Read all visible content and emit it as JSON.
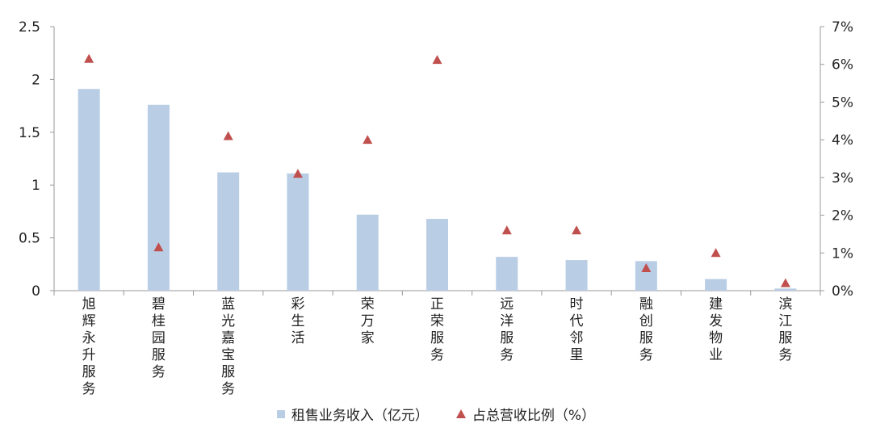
{
  "chart_data": {
    "type": "bar",
    "categories": [
      "旭辉永升服务",
      "碧桂园服务",
      "蓝光嘉宝服务",
      "彩生活",
      "荣万家",
      "正荣服务",
      "远洋服务",
      "时代邻里",
      "融创服务",
      "建发物业",
      "滨江服务"
    ],
    "series": [
      {
        "name": "租售业务收入（亿元）",
        "type": "bar",
        "axis": "left",
        "color": "#b9cde5",
        "values": [
          1.91,
          1.76,
          1.12,
          1.11,
          0.72,
          0.68,
          0.32,
          0.29,
          0.28,
          0.11,
          0.02
        ]
      },
      {
        "name": "占总营收比例（%）",
        "type": "scatter",
        "marker": "triangle",
        "axis": "right",
        "color": "#c0504d",
        "values": [
          6.15,
          1.15,
          4.1,
          3.1,
          4.0,
          6.12,
          1.6,
          1.6,
          0.6,
          1.0,
          0.2
        ]
      }
    ],
    "y_left": {
      "min": 0,
      "max": 2.5,
      "ticks": [
        "0",
        "0.5",
        "1",
        "1.5",
        "2",
        "2.5"
      ]
    },
    "y_right": {
      "min": 0,
      "max": 7,
      "ticks": [
        "0%",
        "1%",
        "2%",
        "3%",
        "4%",
        "5%",
        "6%",
        "7%"
      ]
    },
    "legend_position": "bottom",
    "grid": false
  }
}
